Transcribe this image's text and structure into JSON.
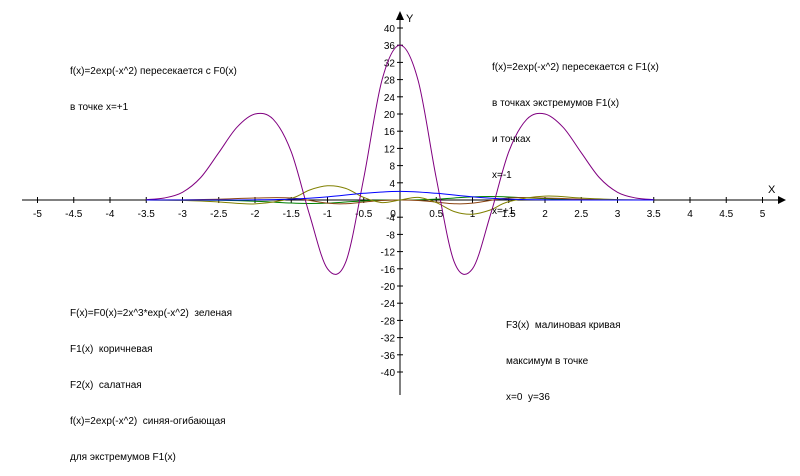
{
  "chart_data": {
    "type": "line",
    "xlabel": "X",
    "ylabel": "Y",
    "xlim": [
      -5,
      5
    ],
    "ylim": [
      -40,
      40
    ],
    "x_ticks": [
      "-5",
      "-4.5",
      "-4",
      "-3.5",
      "-3",
      "-2.5",
      "-2",
      "-1.5",
      "-1",
      "-0.5",
      "0",
      "0.5",
      "1",
      "1.5",
      "2",
      "2.5",
      "3",
      "3.5",
      "4",
      "4.5",
      "5"
    ],
    "y_ticks": [
      "40",
      "36",
      "32",
      "28",
      "24",
      "20",
      "16",
      "12",
      "8",
      "4",
      "-4",
      "-8",
      "-12",
      "-16",
      "-20",
      "-24",
      "-28",
      "-32",
      "-36",
      "-40"
    ],
    "x_tick_values": [
      -5,
      -4.5,
      -4,
      -3.5,
      -3,
      -2.5,
      -2,
      -1.5,
      -1,
      -0.5,
      0,
      0.5,
      1,
      1.5,
      2,
      2.5,
      3,
      3.5,
      4,
      4.5,
      5
    ],
    "y_tick_values": [
      40,
      36,
      32,
      28,
      24,
      20,
      16,
      12,
      8,
      4,
      -4,
      -8,
      -12,
      -16,
      -20,
      -24,
      -28,
      -32,
      -36,
      -40
    ],
    "series": [
      {
        "name": "F(x)=F0(x)=2x^3*exp(-x^2)",
        "color": "#008000",
        "x": [
          -3.5,
          -3,
          -2.5,
          -2,
          -1.5,
          -1.25,
          -1,
          -0.75,
          -0.5,
          -0.25,
          0,
          0.25,
          0.5,
          0.75,
          1,
          1.25,
          1.5,
          2,
          2.5,
          3,
          3.5
        ],
        "y": [
          -0.0,
          -0.01,
          -0.06,
          -0.29,
          -0.71,
          -0.82,
          -0.74,
          -0.48,
          -0.19,
          -0.03,
          0,
          0.03,
          0.19,
          0.48,
          0.74,
          0.82,
          0.71,
          0.29,
          0.06,
          0.01,
          0.0
        ]
      },
      {
        "name": "F1(x)",
        "color": "#8B4513",
        "x": [
          -3.5,
          -3,
          -2.5,
          -2,
          -1.5,
          -1,
          -0.75,
          -0.5,
          -0.25,
          0,
          0.25,
          0.5,
          0.75,
          1,
          1.5,
          2,
          2.5,
          3,
          3.5
        ],
        "y": [
          0.0,
          0.04,
          0.18,
          0.46,
          0.45,
          -0.74,
          -0.86,
          -0.48,
          -0.11,
          0,
          -0.11,
          -0.48,
          -0.86,
          -0.74,
          0.45,
          0.46,
          0.18,
          0.04,
          0.0
        ]
      },
      {
        "name": "F2(x)",
        "color": "#808000",
        "x": [
          -3.5,
          -3,
          -2.5,
          -2,
          -1.5,
          -1.25,
          -1,
          -0.75,
          -0.5,
          -0.25,
          0,
          0.25,
          0.5,
          0.75,
          1,
          1.25,
          1.5,
          2,
          2.5,
          3,
          3.5
        ],
        "y": [
          -0.01,
          -0.1,
          -0.45,
          -0.9,
          0.38,
          2.3,
          3.3,
          2.7,
          0.6,
          -0.6,
          0,
          0.6,
          -0.6,
          -2.7,
          -3.3,
          -2.3,
          -0.38,
          0.9,
          0.45,
          0.1,
          0.01
        ]
      },
      {
        "name": "F3(x)",
        "color": "#800080",
        "x": [
          -3.5,
          -3.25,
          -3,
          -2.75,
          -2.5,
          -2.25,
          -2,
          -1.75,
          -1.5,
          -1.25,
          -1,
          -0.75,
          -0.5,
          -0.25,
          0,
          0.25,
          0.5,
          0.75,
          1,
          1.25,
          1.5,
          1.75,
          2,
          2.25,
          2.5,
          2.75,
          3,
          3.25,
          3.5
        ],
        "y": [
          0.1,
          0.47,
          1.8,
          5.2,
          11.0,
          16.9,
          20.0,
          18.8,
          11.2,
          -3.3,
          -16.0,
          -14.5,
          5.1,
          27.8,
          36.0,
          27.8,
          5.1,
          -14.5,
          -16.0,
          -3.3,
          11.2,
          18.8,
          20.0,
          16.9,
          11.0,
          5.2,
          1.8,
          0.47,
          0.1
        ]
      },
      {
        "name": "f(x)=2exp(-x^2)",
        "color": "#0000FF",
        "x": [
          -3.5,
          -3,
          -2.5,
          -2,
          -1.5,
          -1,
          -0.5,
          0,
          0.5,
          1,
          1.5,
          2,
          2.5,
          3,
          3.5
        ],
        "y": [
          0.0,
          0.0,
          0.004,
          0.037,
          0.21,
          0.74,
          1.56,
          2.0,
          1.56,
          0.74,
          0.21,
          0.037,
          0.004,
          0.0,
          0.0
        ]
      }
    ]
  },
  "notes": {
    "top_left": {
      "lines": [
        "f(x)=2exp(-x^2) пересекается с F0(x)",
        "в точке x=+1"
      ]
    },
    "top_right": {
      "lines": [
        "f(x)=2exp(-x^2) пересекается с F1(x)",
        "в точках экстремумов F1(x)",
        "и точках",
        "x=-1",
        "x=+1"
      ]
    },
    "bottom_left": {
      "lines": [
        "F(x)=F0(x)=2x^3*exp(-x^2)  зеленая",
        "F1(x)  коричневая",
        "F2(x)  салатная",
        "f(x)=2exp(-x^2)  синяя-огибающая",
        "для экстремумов F1(x)"
      ]
    },
    "bottom_right": {
      "lines": [
        "F3(x)  малиновая кривая",
        "максимум в точке",
        "x=0  y=36"
      ]
    }
  }
}
